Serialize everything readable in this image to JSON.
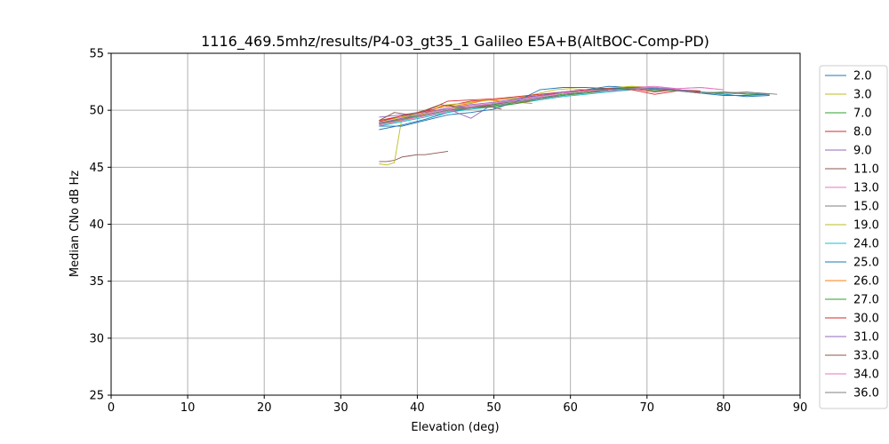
{
  "chart_data": {
    "type": "line",
    "title": "1116_469.5mhz/results/P4-03_gt35_1 Galileo E5A+B(AltBOC-Comp-PD)",
    "xlabel": "Elevation (deg)",
    "ylabel": "Median CNo dB Hz",
    "xlim": [
      0,
      90
    ],
    "ylim": [
      25,
      55
    ],
    "xticks": [
      0,
      10,
      20,
      30,
      40,
      50,
      60,
      70,
      80,
      90
    ],
    "yticks": [
      25,
      30,
      35,
      40,
      45,
      50,
      55
    ],
    "grid": true,
    "legend_position": "right",
    "series": [
      {
        "name": "2.0",
        "color": "#1f77b4",
        "x": [
          35,
          38,
          41,
          44,
          47,
          50,
          53,
          56,
          59,
          62,
          65,
          68,
          71,
          74,
          77,
          80,
          83,
          86
        ],
        "y": [
          48.3,
          48.7,
          49.2,
          49.8,
          50.2,
          50.5,
          51.0,
          51.3,
          51.6,
          51.8,
          52.1,
          52.0,
          51.9,
          51.8,
          51.6,
          51.4,
          51.2,
          51.3
        ]
      },
      {
        "name": "3.0",
        "color": "#bcbd22",
        "x": [
          35,
          38,
          41,
          44,
          47,
          50,
          53,
          56,
          59,
          62,
          65,
          68,
          71,
          74,
          77
        ],
        "y": [
          49.0,
          49.4,
          49.8,
          50.1,
          50.3,
          50.6,
          50.9,
          51.2,
          51.5,
          51.7,
          51.9,
          52.1,
          52.0,
          51.8,
          51.6
        ]
      },
      {
        "name": "7.0",
        "color": "#2ca02c",
        "x": [
          35,
          38,
          41,
          44,
          47,
          50,
          53,
          56,
          59,
          62,
          65,
          68,
          71,
          74,
          77,
          80,
          83,
          86
        ],
        "y": [
          48.9,
          49.2,
          49.6,
          50.0,
          50.3,
          50.5,
          50.8,
          51.1,
          51.4,
          51.6,
          51.9,
          52.0,
          51.8,
          51.7,
          51.5,
          51.6,
          51.4,
          51.4
        ]
      },
      {
        "name": "8.0",
        "color": "#d62728",
        "x": [
          35,
          38,
          41,
          44,
          47,
          50,
          53,
          56,
          59,
          62,
          65,
          68,
          71,
          74,
          77
        ],
        "y": [
          49.1,
          49.5,
          49.9,
          50.4,
          50.8,
          50.9,
          51.1,
          51.3,
          51.5,
          51.7,
          51.8,
          51.9,
          51.6,
          51.8,
          51.7
        ]
      },
      {
        "name": "9.0",
        "color": "#9467bd",
        "x": [
          35,
          38,
          41,
          44,
          47,
          50,
          53,
          56,
          59,
          62,
          65,
          68,
          71,
          74,
          77,
          80
        ],
        "y": [
          49.4,
          49.6,
          49.9,
          50.1,
          49.3,
          50.6,
          50.8,
          51.1,
          51.3,
          51.5,
          51.7,
          51.8,
          52.0,
          51.8,
          51.6,
          51.5
        ]
      },
      {
        "name": "11.0",
        "color": "#8c564b",
        "x": [
          35,
          36,
          37,
          38,
          39,
          40,
          41,
          42,
          43,
          44
        ],
        "y": [
          45.5,
          45.5,
          45.6,
          45.9,
          46.0,
          46.1,
          46.1,
          46.2,
          46.3,
          46.4
        ]
      },
      {
        "name": "13.0",
        "color": "#e377c2",
        "x": [
          35,
          38,
          41,
          44,
          47,
          50,
          53,
          56,
          59,
          62,
          65,
          68,
          71,
          74,
          77,
          80
        ],
        "y": [
          48.8,
          49.2,
          49.7,
          50.1,
          50.4,
          50.6,
          50.9,
          51.2,
          51.5,
          51.7,
          51.8,
          52.0,
          52.1,
          51.9,
          52.0,
          51.8
        ]
      },
      {
        "name": "15.0",
        "color": "#7f7f7f",
        "x": [
          35,
          38,
          41,
          44,
          47,
          50,
          53,
          56,
          59,
          62,
          65,
          68,
          71,
          74,
          77,
          80,
          83,
          87
        ],
        "y": [
          48.7,
          49.1,
          49.5,
          49.9,
          50.2,
          50.4,
          50.7,
          51.0,
          51.3,
          51.6,
          51.8,
          51.9,
          51.8,
          51.7,
          51.6,
          51.5,
          51.6,
          51.4
        ]
      },
      {
        "name": "19.0",
        "color": "#bcbd22",
        "x": [
          35,
          36,
          37,
          38,
          40,
          42,
          44,
          46,
          48,
          50,
          52,
          54,
          56,
          58,
          60,
          62,
          64,
          66,
          68,
          70
        ],
        "y": [
          45.3,
          45.2,
          45.4,
          49.4,
          49.8,
          50.2,
          50.5,
          50.6,
          50.8,
          50.9,
          51.0,
          51.2,
          51.5,
          51.8,
          51.9,
          51.8,
          51.9,
          52.0,
          52.1,
          51.8
        ]
      },
      {
        "name": "24.0",
        "color": "#17becf",
        "x": [
          35,
          38,
          41,
          44,
          47,
          50,
          53,
          56,
          59,
          62,
          65,
          68,
          71,
          74,
          77,
          80,
          83,
          86
        ],
        "y": [
          48.6,
          49.0,
          49.4,
          49.8,
          50.1,
          50.3,
          50.6,
          50.9,
          51.2,
          51.4,
          51.6,
          51.8,
          51.9,
          51.8,
          51.6,
          51.4,
          51.5,
          51.4
        ]
      },
      {
        "name": "25.0",
        "color": "#1f77b4",
        "x": [
          35,
          38,
          41,
          44,
          47,
          50,
          53,
          56,
          59,
          62,
          65,
          68,
          71,
          74,
          77,
          80,
          83,
          86
        ],
        "y": [
          48.6,
          48.6,
          49.1,
          49.6,
          49.8,
          50.1,
          50.8,
          51.8,
          52.0,
          52.0,
          51.9,
          52.0,
          51.9,
          51.8,
          51.5,
          51.3,
          51.3,
          51.4
        ]
      },
      {
        "name": "26.0",
        "color": "#ff7f0e",
        "x": [
          35,
          37,
          39,
          41,
          43,
          45,
          47,
          49,
          51,
          53,
          55
        ],
        "y": [
          48.9,
          49.0,
          49.3,
          49.7,
          50.3,
          50.4,
          50.6,
          50.9,
          50.8,
          50.7,
          50.6
        ]
      },
      {
        "name": "27.0",
        "color": "#2ca02c",
        "x": [
          35,
          38,
          41,
          44,
          47,
          50,
          53,
          56,
          59,
          62,
          65,
          68,
          71,
          74,
          77,
          80
        ],
        "y": [
          48.8,
          49.3,
          49.6,
          50.0,
          50.2,
          50.3,
          50.6,
          51.0,
          51.3,
          51.5,
          51.8,
          52.0,
          51.7,
          51.8,
          51.5,
          51.5
        ]
      },
      {
        "name": "30.0",
        "color": "#d62728",
        "x": [
          35,
          38,
          41,
          44,
          47,
          50,
          53,
          56,
          59,
          62,
          65,
          68,
          71,
          74,
          77
        ],
        "y": [
          49.0,
          49.5,
          49.9,
          50.8,
          50.9,
          51.0,
          51.2,
          51.4,
          51.6,
          51.8,
          51.9,
          51.8,
          51.4,
          51.7,
          51.6
        ]
      },
      {
        "name": "31.0",
        "color": "#9467bd",
        "x": [
          35,
          38,
          41,
          44,
          47,
          50,
          53,
          56,
          59,
          62,
          65,
          68,
          71,
          74,
          77
        ],
        "y": [
          48.9,
          49.3,
          49.8,
          50.2,
          50.5,
          50.7,
          51.0,
          51.3,
          51.6,
          51.7,
          51.8,
          51.9,
          52.0,
          51.8,
          51.5
        ]
      },
      {
        "name": "33.0",
        "color": "#8c564b",
        "x": [
          35,
          37,
          39,
          41,
          43,
          45,
          47,
          49,
          51
        ],
        "y": [
          49.1,
          49.8,
          49.6,
          50.0,
          50.5,
          50.3,
          50.2,
          50.4,
          50.1
        ]
      },
      {
        "name": "34.0",
        "color": "#e377c2",
        "x": [
          35,
          38,
          41,
          44,
          47,
          50,
          53,
          56,
          59,
          62,
          65,
          68,
          71,
          74,
          77,
          80
        ],
        "y": [
          48.7,
          49.1,
          49.5,
          49.9,
          50.3,
          50.6,
          50.9,
          51.2,
          51.5,
          51.7,
          51.8,
          51.9,
          52.0,
          51.9,
          52.0,
          51.8
        ]
      },
      {
        "name": "36.0",
        "color": "#7f7f7f",
        "x": [
          35,
          38,
          41,
          44,
          47,
          50,
          53,
          56,
          59,
          62,
          65,
          68,
          71,
          74,
          77,
          80,
          83,
          86
        ],
        "y": [
          48.8,
          49.2,
          49.6,
          50.0,
          50.2,
          50.4,
          50.7,
          51.0,
          51.3,
          51.6,
          51.8,
          51.9,
          51.8,
          51.7,
          51.5,
          51.6,
          51.5,
          51.4
        ]
      }
    ]
  }
}
